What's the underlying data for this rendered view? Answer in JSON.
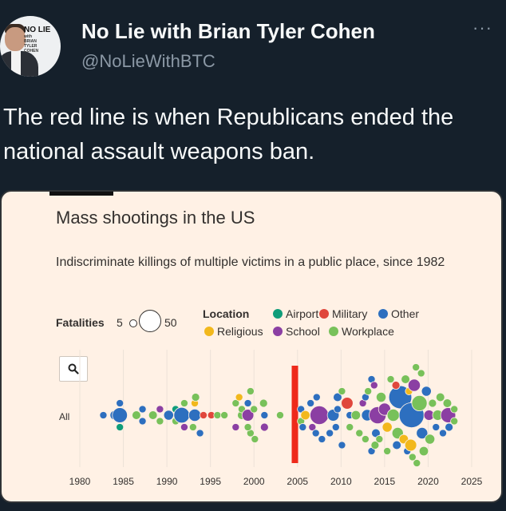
{
  "tweet": {
    "author_name": "No Lie with Brian Tyler Cohen",
    "handle": "@NoLieWithBTC",
    "more_glyph": "···",
    "text": "The red line is when Republicans ended the national assault weapons ban.",
    "avatar_logo_line1": "NO LIE",
    "avatar_logo_small": "with",
    "avatar_logo_line2": "BRIAN",
    "avatar_logo_line3": "TYLER",
    "avatar_logo_line4": "COHEN"
  },
  "icons": {
    "search": "search-icon",
    "more": "more-icon"
  },
  "chart_data": {
    "type": "scatter",
    "title": "Mass shootings in the US",
    "subtitle": "Indiscriminate killings of multiple victims in a public place, since 1982",
    "fatalities_label": "Fatalities",
    "fatalities_min": "5",
    "fatalities_max": "50",
    "location_label": "Location",
    "row_label": "All",
    "legend": [
      {
        "name": "Airport",
        "color": "#0f9d7a"
      },
      {
        "name": "Military",
        "color": "#e0473c"
      },
      {
        "name": "Other",
        "color": "#2d6fbf"
      },
      {
        "name": "Religious",
        "color": "#f2b81c"
      },
      {
        "name": "School",
        "color": "#8b3fa3"
      },
      {
        "name": "Workplace",
        "color": "#78c15a"
      }
    ],
    "x_ticks": [
      1980,
      1985,
      1990,
      1995,
      2000,
      2005,
      2010,
      2015,
      2020,
      2025
    ],
    "xlim": [
      1980,
      2025
    ],
    "highlight_year": 2004.7,
    "highlight_color": "#ee2a1b",
    "points": [
      {
        "year": 1982.7,
        "offset": 0,
        "f": 5,
        "loc": "Other"
      },
      {
        "year": 1984.0,
        "offset": 0,
        "f": 8,
        "loc": "Other"
      },
      {
        "year": 1984.6,
        "offset": 0,
        "f": 21,
        "loc": "Other"
      },
      {
        "year": 1984.6,
        "offset": -2,
        "f": 5,
        "loc": "Other"
      },
      {
        "year": 1984.6,
        "offset": 2,
        "f": 5,
        "loc": "Airport"
      },
      {
        "year": 1986.5,
        "offset": 0,
        "f": 7,
        "loc": "Workplace"
      },
      {
        "year": 1987.2,
        "offset": -1,
        "f": 5,
        "loc": "Other"
      },
      {
        "year": 1987.2,
        "offset": 1,
        "f": 5,
        "loc": "Other"
      },
      {
        "year": 1988.4,
        "offset": 0,
        "f": 7,
        "loc": "Workplace"
      },
      {
        "year": 1989.2,
        "offset": -1,
        "f": 5,
        "loc": "School"
      },
      {
        "year": 1989.2,
        "offset": 1,
        "f": 5,
        "loc": "Workplace"
      },
      {
        "year": 1990.2,
        "offset": 0,
        "f": 9,
        "loc": "Other"
      },
      {
        "year": 1991.0,
        "offset": -1,
        "f": 5,
        "loc": "Airport"
      },
      {
        "year": 1991.0,
        "offset": 1,
        "f": 5,
        "loc": "Workplace"
      },
      {
        "year": 1991.7,
        "offset": 0,
        "f": 23,
        "loc": "Other"
      },
      {
        "year": 1992.0,
        "offset": -2,
        "f": 5,
        "loc": "Workplace"
      },
      {
        "year": 1992.0,
        "offset": 2,
        "f": 5,
        "loc": "School"
      },
      {
        "year": 1993.2,
        "offset": 0,
        "f": 14,
        "loc": "Other"
      },
      {
        "year": 1993.2,
        "offset": -2,
        "f": 5,
        "loc": "Religious"
      },
      {
        "year": 1993.3,
        "offset": -3,
        "f": 6,
        "loc": "Workplace"
      },
      {
        "year": 1993.0,
        "offset": 2,
        "f": 5,
        "loc": "Workplace"
      },
      {
        "year": 1993.8,
        "offset": 3,
        "f": 5,
        "loc": "Other"
      },
      {
        "year": 1994.2,
        "offset": 0,
        "f": 5,
        "loc": "Military"
      },
      {
        "year": 1995.1,
        "offset": 0,
        "f": 5,
        "loc": "Military"
      },
      {
        "year": 1995.8,
        "offset": 0,
        "f": 5,
        "loc": "Workplace"
      },
      {
        "year": 1996.6,
        "offset": 0,
        "f": 5,
        "loc": "Workplace"
      },
      {
        "year": 1997.9,
        "offset": -2,
        "f": 5,
        "loc": "Workplace"
      },
      {
        "year": 1997.9,
        "offset": 2,
        "f": 5,
        "loc": "School"
      },
      {
        "year": 1998.3,
        "offset": -3,
        "f": 5,
        "loc": "Religious"
      },
      {
        "year": 1998.6,
        "offset": 0,
        "f": 7,
        "loc": "Workplace"
      },
      {
        "year": 1998.6,
        "offset": -1,
        "f": 5,
        "loc": "Workplace"
      },
      {
        "year": 1999.3,
        "offset": 0,
        "f": 13,
        "loc": "School"
      },
      {
        "year": 1999.6,
        "offset": -4,
        "f": 5,
        "loc": "Workplace"
      },
      {
        "year": 1999.6,
        "offset": 3,
        "f": 5,
        "loc": "Workplace"
      },
      {
        "year": 1999.3,
        "offset": -2,
        "f": 5,
        "loc": "Other"
      },
      {
        "year": 1999.3,
        "offset": 2,
        "f": 5,
        "loc": "Workplace"
      },
      {
        "year": 2000.1,
        "offset": 4,
        "f": 5,
        "loc": "Workplace"
      },
      {
        "year": 2000.0,
        "offset": -1,
        "f": 5,
        "loc": "Workplace"
      },
      {
        "year": 2001.1,
        "offset": -2,
        "f": 6,
        "loc": "Workplace"
      },
      {
        "year": 2001.2,
        "offset": 0,
        "f": 5,
        "loc": "Other"
      },
      {
        "year": 2001.2,
        "offset": 2,
        "f": 6,
        "loc": "School"
      },
      {
        "year": 2003.0,
        "offset": 0,
        "f": 5,
        "loc": "Workplace"
      },
      {
        "year": 2005.4,
        "offset": -1,
        "f": 5,
        "loc": "Other"
      },
      {
        "year": 2005.4,
        "offset": 1,
        "f": 5,
        "loc": "Workplace"
      },
      {
        "year": 2005.9,
        "offset": 0,
        "f": 8,
        "loc": "Religious"
      },
      {
        "year": 2005.6,
        "offset": 2,
        "f": 5,
        "loc": "Other"
      },
      {
        "year": 2006.5,
        "offset": -2,
        "f": 5,
        "loc": "Other"
      },
      {
        "year": 2006.7,
        "offset": 2,
        "f": 5,
        "loc": "School"
      },
      {
        "year": 2007.5,
        "offset": 0,
        "f": 32,
        "loc": "School"
      },
      {
        "year": 2007.1,
        "offset": 3,
        "f": 5,
        "loc": "Other"
      },
      {
        "year": 2007.2,
        "offset": -3,
        "f": 5,
        "loc": "Other"
      },
      {
        "year": 2007.8,
        "offset": 4,
        "f": 5,
        "loc": "Other"
      },
      {
        "year": 2008.7,
        "offset": 3,
        "f": 5,
        "loc": "Other"
      },
      {
        "year": 2009.1,
        "offset": 0,
        "f": 13,
        "loc": "Other"
      },
      {
        "year": 2009.6,
        "offset": -1,
        "f": 5,
        "loc": "Other"
      },
      {
        "year": 2009.4,
        "offset": 2,
        "f": 5,
        "loc": "Other"
      },
      {
        "year": 2009.6,
        "offset": -3,
        "f": 7,
        "loc": "Other"
      },
      {
        "year": 2010.1,
        "offset": 5,
        "f": 5,
        "loc": "Other"
      },
      {
        "year": 2010.1,
        "offset": -4,
        "f": 5,
        "loc": "Workplace"
      },
      {
        "year": 2010.7,
        "offset": -2,
        "f": 13,
        "loc": "Military"
      },
      {
        "year": 2011.0,
        "offset": 0,
        "f": 5,
        "loc": "Other"
      },
      {
        "year": 2011.0,
        "offset": 2,
        "f": 5,
        "loc": "Workplace"
      },
      {
        "year": 2011.7,
        "offset": 0,
        "f": 8,
        "loc": "Workplace"
      },
      {
        "year": 2012.1,
        "offset": 3,
        "f": 5,
        "loc": "Workplace"
      },
      {
        "year": 2012.5,
        "offset": -2,
        "f": 5,
        "loc": "School"
      },
      {
        "year": 2012.8,
        "offset": -3,
        "f": 5,
        "loc": "Other"
      },
      {
        "year": 2012.8,
        "offset": 4,
        "f": 5,
        "loc": "Workplace"
      },
      {
        "year": 2013.0,
        "offset": 0,
        "f": 12,
        "loc": "Other"
      },
      {
        "year": 2013.1,
        "offset": -4,
        "f": 5,
        "loc": "Workplace"
      },
      {
        "year": 2013.5,
        "offset": -6,
        "f": 5,
        "loc": "Other"
      },
      {
        "year": 2013.5,
        "offset": 6,
        "f": 5,
        "loc": "Other"
      },
      {
        "year": 2013.8,
        "offset": -5,
        "f": 5,
        "loc": "School"
      },
      {
        "year": 2013.9,
        "offset": 5,
        "f": 6,
        "loc": "Workplace"
      },
      {
        "year": 2014.2,
        "offset": 0,
        "f": 27,
        "loc": "School"
      },
      {
        "year": 2014.0,
        "offset": 3,
        "f": 7,
        "loc": "Other"
      },
      {
        "year": 2014.6,
        "offset": -3,
        "f": 9,
        "loc": "Workplace"
      },
      {
        "year": 2014.4,
        "offset": 4,
        "f": 5,
        "loc": "Workplace"
      },
      {
        "year": 2015.0,
        "offset": -1,
        "f": 14,
        "loc": "School"
      },
      {
        "year": 2015.3,
        "offset": 2,
        "f": 9,
        "loc": "Religious"
      },
      {
        "year": 2015.3,
        "offset": 6,
        "f": 5,
        "loc": "Workplace"
      },
      {
        "year": 2015.7,
        "offset": -6,
        "f": 5,
        "loc": "Workplace"
      },
      {
        "year": 2016.0,
        "offset": 0,
        "f": 14,
        "loc": "Workplace"
      },
      {
        "year": 2016.5,
        "offset": 3,
        "f": 12,
        "loc": "Workplace"
      },
      {
        "year": 2016.8,
        "offset": -3,
        "f": 49,
        "loc": "Other"
      },
      {
        "year": 2016.4,
        "offset": 5,
        "f": 7,
        "loc": "Other"
      },
      {
        "year": 2016.3,
        "offset": -5,
        "f": 6,
        "loc": "Military"
      },
      {
        "year": 2017.2,
        "offset": 4,
        "f": 8,
        "loc": "Religious"
      },
      {
        "year": 2017.4,
        "offset": -6,
        "f": 7,
        "loc": "Workplace"
      },
      {
        "year": 2017.6,
        "offset": 6,
        "f": 5,
        "loc": "Other"
      },
      {
        "year": 2017.8,
        "offset": -4,
        "f": 5,
        "loc": "Religious"
      },
      {
        "year": 2018.1,
        "offset": 0,
        "f": 58,
        "loc": "Other"
      },
      {
        "year": 2018.0,
        "offset": 5,
        "f": 13,
        "loc": "Religious"
      },
      {
        "year": 2018.4,
        "offset": -5,
        "f": 14,
        "loc": "School"
      },
      {
        "year": 2018.2,
        "offset": 7,
        "f": 5,
        "loc": "Workplace"
      },
      {
        "year": 2018.6,
        "offset": -8,
        "f": 5,
        "loc": "Workplace"
      },
      {
        "year": 2018.7,
        "offset": 8,
        "f": 5,
        "loc": "Workplace"
      },
      {
        "year": 2019.0,
        "offset": -2,
        "f": 22,
        "loc": "Workplace"
      },
      {
        "year": 2019.3,
        "offset": 3,
        "f": 12,
        "loc": "Other"
      },
      {
        "year": 2019.2,
        "offset": -7,
        "f": 5,
        "loc": "Workplace"
      },
      {
        "year": 2019.5,
        "offset": 6,
        "f": 8,
        "loc": "Workplace"
      },
      {
        "year": 2019.8,
        "offset": -4,
        "f": 9,
        "loc": "Other"
      },
      {
        "year": 2020.1,
        "offset": 0,
        "f": 10,
        "loc": "School"
      },
      {
        "year": 2020.2,
        "offset": 4,
        "f": 9,
        "loc": "Workplace"
      },
      {
        "year": 2020.5,
        "offset": -2,
        "f": 6,
        "loc": "Workplace"
      },
      {
        "year": 2020.9,
        "offset": 2,
        "f": 5,
        "loc": "Other"
      },
      {
        "year": 2021.1,
        "offset": 0,
        "f": 10,
        "loc": "Workplace"
      },
      {
        "year": 2021.4,
        "offset": -3,
        "f": 7,
        "loc": "Workplace"
      },
      {
        "year": 2021.7,
        "offset": 3,
        "f": 5,
        "loc": "Other"
      },
      {
        "year": 2022.3,
        "offset": 0,
        "f": 21,
        "loc": "School"
      },
      {
        "year": 2022.2,
        "offset": -2,
        "f": 7,
        "loc": "Workplace"
      },
      {
        "year": 2022.4,
        "offset": 2,
        "f": 6,
        "loc": "Other"
      },
      {
        "year": 2023.0,
        "offset": -1,
        "f": 5,
        "loc": "Workplace"
      },
      {
        "year": 2023.0,
        "offset": 1,
        "f": 5,
        "loc": "Workplace"
      }
    ]
  }
}
